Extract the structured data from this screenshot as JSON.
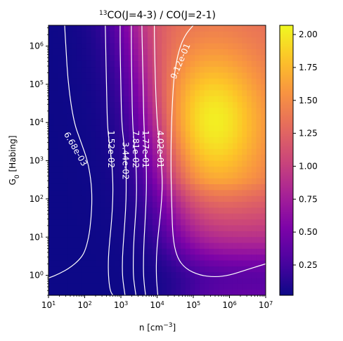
{
  "chart_data": {
    "type": "heatmap",
    "title": {
      "prefix": "13",
      "main": "CO(J=4-3) / CO(J=2-1)"
    },
    "xlabel": {
      "base": "n [cm",
      "sup": "−3",
      "end": "]"
    },
    "ylabel": {
      "base": "G",
      "sub": "0",
      "end": " [Habing]"
    },
    "x_scale": "log",
    "y_scale": "log",
    "xlim": [
      10,
      10000000
    ],
    "ylim": [
      0.3,
      3500000
    ],
    "x_ticks": [
      {
        "value": 10,
        "base": "10",
        "exp": "1"
      },
      {
        "value": 100,
        "base": "10",
        "exp": "2"
      },
      {
        "value": 1000,
        "base": "10",
        "exp": "3"
      },
      {
        "value": 10000,
        "base": "10",
        "exp": "4"
      },
      {
        "value": 100000,
        "base": "10",
        "exp": "5"
      },
      {
        "value": 1000000,
        "base": "10",
        "exp": "6"
      },
      {
        "value": 10000000,
        "base": "10",
        "exp": "7"
      }
    ],
    "y_ticks": [
      {
        "value": 1,
        "base": "10",
        "exp": "0"
      },
      {
        "value": 10,
        "base": "10",
        "exp": "1"
      },
      {
        "value": 100,
        "base": "10",
        "exp": "2"
      },
      {
        "value": 1000,
        "base": "10",
        "exp": "3"
      },
      {
        "value": 10000,
        "base": "10",
        "exp": "4"
      },
      {
        "value": 100000,
        "base": "10",
        "exp": "5"
      },
      {
        "value": 1000000,
        "base": "10",
        "exp": "6"
      }
    ],
    "colorbar": {
      "colormap": "plasma",
      "range": [
        0.02,
        2.07
      ],
      "ticks": [
        {
          "value": 0.25,
          "label": "0.25"
        },
        {
          "value": 0.5,
          "label": "0.50"
        },
        {
          "value": 0.75,
          "label": "0.75"
        },
        {
          "value": 1.0,
          "label": "1.00"
        },
        {
          "value": 1.25,
          "label": "1.25"
        },
        {
          "value": 1.5,
          "label": "1.50"
        },
        {
          "value": 1.75,
          "label": "1.75"
        },
        {
          "value": 2.0,
          "label": "2.00"
        }
      ]
    },
    "contours": [
      {
        "level": 0.00668,
        "label": "6.68e-03",
        "path": [
          [
            10,
            0.85
          ],
          [
            20,
            1.1
          ],
          [
            40,
            1.6
          ],
          [
            70,
            2.5
          ],
          [
            100,
            4
          ],
          [
            130,
            10
          ],
          [
            150,
            30
          ],
          [
            160,
            100
          ],
          [
            150,
            300
          ],
          [
            120,
            1000
          ],
          [
            80,
            3000
          ],
          [
            50,
            10000
          ],
          [
            35,
            100000
          ],
          [
            30,
            1000000
          ],
          [
            28,
            3500000
          ]
        ],
        "label_at": [
          55,
          2000
        ],
        "label_angle": 60
      },
      {
        "level": 0.0152,
        "label": "1.52e-02",
        "path": [
          [
            600,
            0.3
          ],
          [
            500,
            0.4
          ],
          [
            450,
            1
          ],
          [
            450,
            3
          ],
          [
            500,
            10
          ],
          [
            560,
            30
          ],
          [
            600,
            100
          ],
          [
            600,
            300
          ],
          [
            560,
            1000
          ],
          [
            470,
            3000
          ],
          [
            420,
            10000
          ],
          [
            400,
            100000
          ],
          [
            380,
            1000000
          ],
          [
            370,
            3500000
          ]
        ],
        "label_at": [
          520,
          2000
        ],
        "label_angle": 90
      },
      {
        "level": 0.0344,
        "label": "3.44e-02",
        "path": [
          [
            1300,
            0.3
          ],
          [
            1200,
            0.5
          ],
          [
            1100,
            1
          ],
          [
            1100,
            3
          ],
          [
            1200,
            10
          ],
          [
            1300,
            30
          ],
          [
            1400,
            100
          ],
          [
            1400,
            300
          ],
          [
            1400,
            1000
          ],
          [
            1200,
            3000
          ],
          [
            1050,
            10000
          ],
          [
            1000,
            100000
          ],
          [
            950,
            1000000
          ],
          [
            950,
            3500000
          ]
        ],
        "label_at": [
          1300,
          1000
        ],
        "label_angle": 90
      },
      {
        "level": 0.0781,
        "label": "7.81e-02",
        "path": [
          [
            2600,
            0.3
          ],
          [
            2400,
            0.5
          ],
          [
            2200,
            1
          ],
          [
            2200,
            3
          ],
          [
            2300,
            10
          ],
          [
            2500,
            30
          ],
          [
            2700,
            100
          ],
          [
            2700,
            300
          ],
          [
            2600,
            1000
          ],
          [
            2300,
            3000
          ],
          [
            2100,
            10000
          ],
          [
            2000,
            100000
          ],
          [
            1950,
            1000000
          ],
          [
            1950,
            3500000
          ]
        ],
        "label_at": [
          2500,
          2000
        ],
        "label_angle": 90
      },
      {
        "level": 0.177,
        "label": "1.77e-01",
        "path": [
          [
            4800,
            0.3
          ],
          [
            4500,
            0.5
          ],
          [
            4200,
            1
          ],
          [
            4200,
            3
          ],
          [
            4400,
            10
          ],
          [
            4700,
            30
          ],
          [
            5000,
            100
          ],
          [
            5100,
            300
          ],
          [
            5000,
            1000
          ],
          [
            4600,
            3000
          ],
          [
            4300,
            10000
          ],
          [
            4100,
            100000
          ],
          [
            3900,
            1000000
          ],
          [
            3800,
            3500000
          ]
        ],
        "label_at": [
          4700,
          2000
        ],
        "label_angle": 90
      },
      {
        "level": 0.402,
        "label": "4.02e-01",
        "path": [
          [
            10500,
            0.3
          ],
          [
            10000,
            0.5
          ],
          [
            9500,
            1
          ],
          [
            9500,
            3
          ],
          [
            10500,
            10
          ],
          [
            12000,
            30
          ],
          [
            13500,
            100
          ],
          [
            14000,
            300
          ],
          [
            13000,
            1000
          ],
          [
            11500,
            3000
          ],
          [
            10000,
            10000
          ],
          [
            9000,
            100000
          ],
          [
            8500,
            1000000
          ],
          [
            8400,
            3500000
          ]
        ],
        "label_at": [
          12000,
          2000
        ],
        "label_angle": 90
      },
      {
        "level": 0.912,
        "label": "9.12e-01",
        "path": [
          [
            100000,
            3500000
          ],
          [
            60000,
            2000000
          ],
          [
            40000,
            800000
          ],
          [
            30000,
            200000
          ],
          [
            27000,
            50000
          ],
          [
            25000,
            10000
          ],
          [
            24000,
            1000
          ],
          [
            25000,
            100
          ],
          [
            27000,
            10
          ],
          [
            35000,
            3
          ],
          [
            60000,
            1.5
          ],
          [
            150000,
            1
          ],
          [
            400000,
            0.9
          ],
          [
            1000000,
            1.0
          ],
          [
            3000000,
            1.4
          ],
          [
            7000000,
            1.8
          ],
          [
            10000000,
            2.0
          ]
        ],
        "label_at": [
          45000,
          400000
        ],
        "label_angle": -67
      }
    ]
  }
}
